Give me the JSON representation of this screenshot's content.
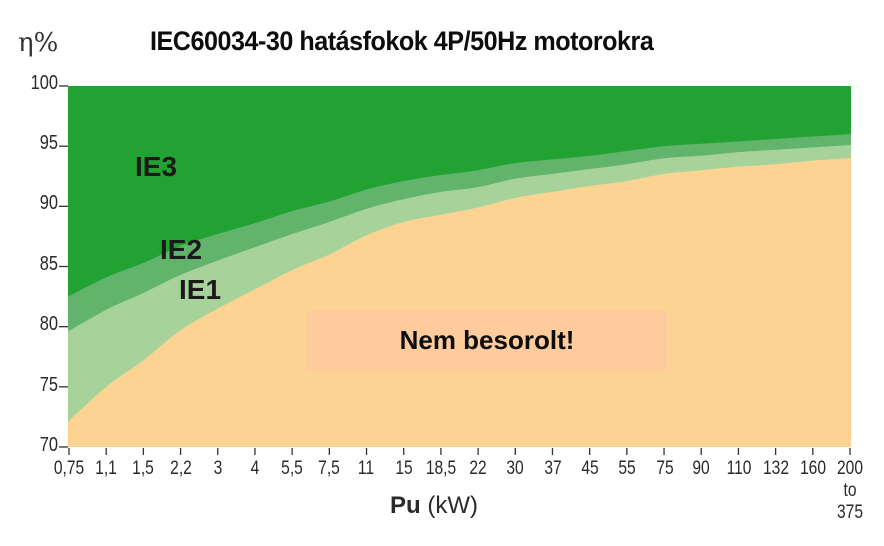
{
  "header": {
    "y_unit_label": "η%",
    "title": "IEC60034-30 hatásfokok 4P/50Hz motorokra"
  },
  "axes": {
    "x_label_bold": "Pu",
    "x_label_unit": "(kW)",
    "x_ticks": [
      "0,75",
      "1,1",
      "1,5",
      "2,2",
      "3",
      "4",
      "5,5",
      "7,5",
      "11",
      "15",
      "18,5",
      "22",
      "30",
      "37",
      "45",
      "55",
      "75",
      "90",
      "110",
      "132",
      "160",
      "200"
    ],
    "x_last_extra_1": "to",
    "x_last_extra_2": "375",
    "y_ticks": [
      "100",
      "95",
      "90",
      "85",
      "80",
      "75",
      "70"
    ]
  },
  "labels": {
    "ie3": "IE3",
    "ie2": "IE2",
    "ie1": "IE1",
    "unclassified": "Nem besorolt!"
  },
  "colors": {
    "ie3": "#21a232",
    "ie2": "#62b36b",
    "ie1": "#a7d39b",
    "unclassified": "#fdd393",
    "unclassified_box": "#fdcb9c",
    "axis": "#333333"
  },
  "chart_data": {
    "type": "area",
    "title": "IEC60034-30 hatásfokok 4P/50Hz motorokra",
    "xlabel": "Pu (kW)",
    "ylabel": "η%",
    "ylim": [
      70,
      100
    ],
    "grid": false,
    "legend": "inline labels",
    "categories": [
      "0,75",
      "1,1",
      "1,5",
      "2,2",
      "3",
      "4",
      "5,5",
      "7,5",
      "11",
      "15",
      "18,5",
      "22",
      "30",
      "37",
      "45",
      "55",
      "75",
      "90",
      "110",
      "132",
      "160",
      "200 to 375"
    ],
    "series": [
      {
        "name": "IE3",
        "values": [
          82.5,
          84.1,
          85.3,
          86.7,
          87.7,
          88.6,
          89.6,
          90.4,
          91.4,
          92.1,
          92.6,
          93.0,
          93.6,
          93.9,
          94.2,
          94.6,
          95.0,
          95.2,
          95.4,
          95.6,
          95.8,
          96.0
        ]
      },
      {
        "name": "IE2",
        "values": [
          79.6,
          81.4,
          82.8,
          84.3,
          85.5,
          86.6,
          87.7,
          88.7,
          89.8,
          90.6,
          91.2,
          91.6,
          92.3,
          92.7,
          93.1,
          93.5,
          94.0,
          94.2,
          94.5,
          94.7,
          94.9,
          95.1
        ]
      },
      {
        "name": "IE1",
        "values": [
          72.1,
          75.0,
          77.2,
          79.7,
          81.5,
          83.1,
          84.7,
          86.0,
          87.6,
          88.7,
          89.3,
          89.9,
          90.7,
          91.2,
          91.7,
          92.1,
          92.7,
          93.0,
          93.3,
          93.5,
          93.8,
          94.0
        ]
      }
    ],
    "annotations": [
      "IE3",
      "IE2",
      "IE1",
      "Nem besorolt!"
    ]
  }
}
